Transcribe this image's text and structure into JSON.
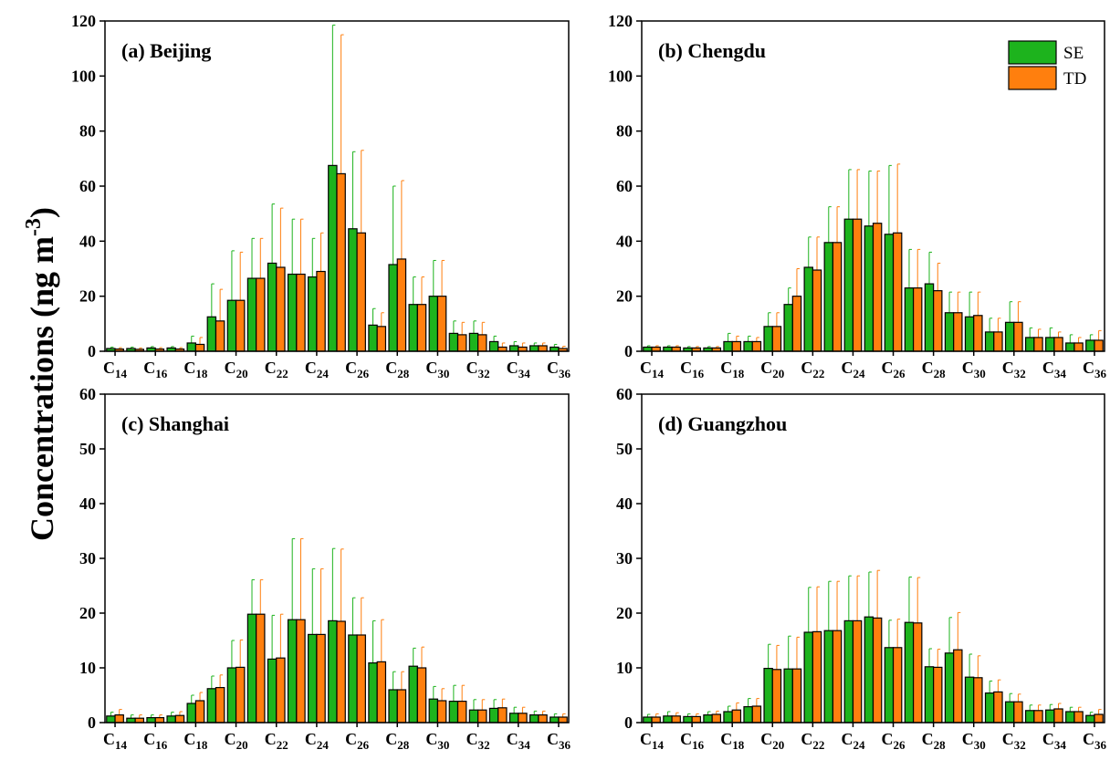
{
  "ylabel": "Concentrations (ng m-3)",
  "chart_data": [
    {
      "type": "bar",
      "title": "(a) Beijing",
      "categories": [
        "C14",
        null,
        "C16",
        null,
        "C18",
        null,
        "C20",
        null,
        "C22",
        null,
        "C24",
        null,
        "C26",
        null,
        "C28",
        null,
        "C30",
        null,
        "C32",
        null,
        "C34",
        null,
        "C36"
      ],
      "series": [
        {
          "name": "SE",
          "color": "#1db31d",
          "values": [
            1,
            1,
            1.2,
            1.2,
            3,
            12.5,
            18.5,
            26.5,
            32,
            28,
            27,
            67.5,
            44.5,
            9.5,
            31.5,
            17,
            20,
            6.5,
            6.5,
            3.5,
            2,
            2,
            1.5
          ],
          "errors": [
            0.5,
            0.5,
            0.5,
            0.5,
            2.5,
            12,
            18,
            14.5,
            21.5,
            20,
            14,
            51,
            28,
            6,
            28.5,
            10,
            13,
            4.5,
            4.5,
            2,
            1.5,
            1,
            1
          ]
        },
        {
          "name": "TD",
          "color": "#ff7f0e",
          "values": [
            0.8,
            0.7,
            0.8,
            0.8,
            2.5,
            11,
            18.5,
            26.5,
            30.5,
            28,
            29,
            64.5,
            43,
            9,
            33.5,
            17,
            20,
            6,
            6,
            1.5,
            1.5,
            2,
            1
          ],
          "errors": [
            0.5,
            0.5,
            0.5,
            0.5,
            2.5,
            11.5,
            17.5,
            14.5,
            21.5,
            20,
            14,
            50.5,
            30,
            5,
            28.5,
            10,
            13,
            4.5,
            4.5,
            1.5,
            1.5,
            1,
            0.8
          ]
        }
      ],
      "ylim": [
        0,
        120
      ],
      "yticks": [
        0,
        20,
        40,
        60,
        80,
        100,
        120
      ]
    },
    {
      "type": "bar",
      "title": "(b) Chengdu",
      "legend": "upper right",
      "categories": [
        "C14",
        null,
        "C16",
        null,
        "C18",
        null,
        "C20",
        null,
        "C22",
        null,
        "C24",
        null,
        "C26",
        null,
        "C28",
        null,
        "C30",
        null,
        "C32",
        null,
        "C34",
        null,
        "C36"
      ],
      "series": [
        {
          "name": "SE",
          "color": "#1db31d",
          "values": [
            1.5,
            1.5,
            1.2,
            1.2,
            3.5,
            3.5,
            9,
            17,
            30.5,
            39.5,
            48,
            45.5,
            42.5,
            23,
            24.5,
            14,
            12.5,
            7,
            10.5,
            5,
            5,
            3,
            4
          ],
          "errors": [
            0.5,
            0.5,
            0.5,
            0.5,
            3,
            2,
            5,
            6,
            11,
            13,
            18,
            20,
            25,
            14,
            11.5,
            7.5,
            9,
            5,
            7.5,
            3.5,
            3.5,
            3,
            2
          ]
        },
        {
          "name": "TD",
          "color": "#ff7f0e",
          "values": [
            1.5,
            1.5,
            1.2,
            1.2,
            3.5,
            3.5,
            9,
            20,
            29.5,
            39.5,
            48,
            46.5,
            43,
            23,
            22,
            14,
            13,
            7,
            10.5,
            5,
            5,
            3,
            4
          ],
          "errors": [
            0.5,
            0.5,
            0.5,
            0.5,
            2,
            1.5,
            5,
            10,
            12,
            13,
            18,
            19,
            25,
            14,
            10,
            7.5,
            8.5,
            5,
            7.5,
            3,
            2,
            2,
            3.5
          ]
        }
      ],
      "ylim": [
        0,
        120
      ],
      "yticks": [
        0,
        20,
        40,
        60,
        80,
        100,
        120
      ]
    },
    {
      "type": "bar",
      "title": "(c) Shanghai",
      "categories": [
        "C14",
        null,
        "C16",
        null,
        "C18",
        null,
        "C20",
        null,
        "C22",
        null,
        "C24",
        null,
        "C26",
        null,
        "C28",
        null,
        "C30",
        null,
        "C32",
        null,
        "C34",
        null,
        "C36"
      ],
      "series": [
        {
          "name": "SE",
          "color": "#1db31d",
          "values": [
            1.2,
            0.8,
            0.9,
            1.2,
            3.5,
            6.2,
            10,
            19.8,
            11.6,
            18.8,
            16.1,
            18.6,
            16,
            10.9,
            6,
            10.3,
            4.3,
            3.9,
            2.3,
            2.6,
            1.7,
            1.4,
            1
          ],
          "errors": [
            0.7,
            0.6,
            0.5,
            0.7,
            1.5,
            2.3,
            5,
            6.3,
            8,
            14.8,
            12,
            13.2,
            6.8,
            7.7,
            3.3,
            3.3,
            2.3,
            2.9,
            1.9,
            1.6,
            1.1,
            0.7,
            0.6
          ]
        },
        {
          "name": "TD",
          "color": "#ff7f0e",
          "values": [
            1.4,
            0.8,
            0.9,
            1.3,
            4,
            6.4,
            10.1,
            19.8,
            11.8,
            18.8,
            16.1,
            18.5,
            16,
            11.1,
            6,
            10,
            4,
            3.9,
            2.3,
            2.7,
            1.7,
            1.4,
            1
          ],
          "errors": [
            1,
            0.6,
            0.5,
            0.7,
            1.5,
            2.3,
            5,
            6.3,
            8,
            14.8,
            12,
            13.2,
            6.8,
            7.7,
            3.3,
            3.8,
            2.2,
            2.9,
            1.9,
            1.6,
            1.1,
            0.7,
            0.6
          ]
        }
      ],
      "ylim": [
        0,
        60
      ],
      "yticks": [
        0,
        10,
        20,
        30,
        40,
        50,
        60
      ]
    },
    {
      "type": "bar",
      "title": "(d) Guangzhou",
      "categories": [
        "C14",
        null,
        "C16",
        null,
        "C18",
        null,
        "C20",
        null,
        "C22",
        null,
        "C24",
        null,
        "C26",
        null,
        "C28",
        null,
        "C30",
        null,
        "C32",
        null,
        "C34",
        null,
        "C36"
      ],
      "series": [
        {
          "name": "SE",
          "color": "#1db31d",
          "values": [
            1,
            1.2,
            1.1,
            1.4,
            2,
            2.9,
            9.9,
            9.8,
            16.5,
            16.8,
            18.6,
            19.3,
            13.7,
            18.3,
            10.2,
            12.7,
            8.3,
            5.4,
            3.8,
            2.2,
            2.3,
            2,
            1.3
          ],
          "errors": [
            0.5,
            0.8,
            0.5,
            0.6,
            1,
            1.5,
            4.4,
            6,
            8.2,
            9,
            8.2,
            8.2,
            5,
            8.3,
            3.3,
            6.5,
            4.2,
            2.2,
            1.5,
            1,
            1,
            0.8,
            0.6
          ]
        },
        {
          "name": "TD",
          "color": "#ff7f0e",
          "values": [
            1,
            1.2,
            1.1,
            1.5,
            2.3,
            3,
            9.7,
            9.8,
            16.6,
            16.8,
            18.6,
            19.1,
            13.7,
            18.2,
            10.1,
            13.3,
            8.2,
            5.6,
            3.8,
            2.2,
            2.5,
            2,
            1.5
          ],
          "errors": [
            0.6,
            0.6,
            0.5,
            0.6,
            1.3,
            1.4,
            4.4,
            5.8,
            8.2,
            9,
            8.2,
            8.7,
            5.2,
            8.3,
            3.3,
            6.8,
            4,
            2.2,
            1.4,
            1,
            1,
            0.8,
            0.9
          ]
        }
      ],
      "ylim": [
        0,
        60
      ],
      "yticks": [
        0,
        10,
        20,
        30,
        40,
        50,
        60
      ]
    }
  ]
}
